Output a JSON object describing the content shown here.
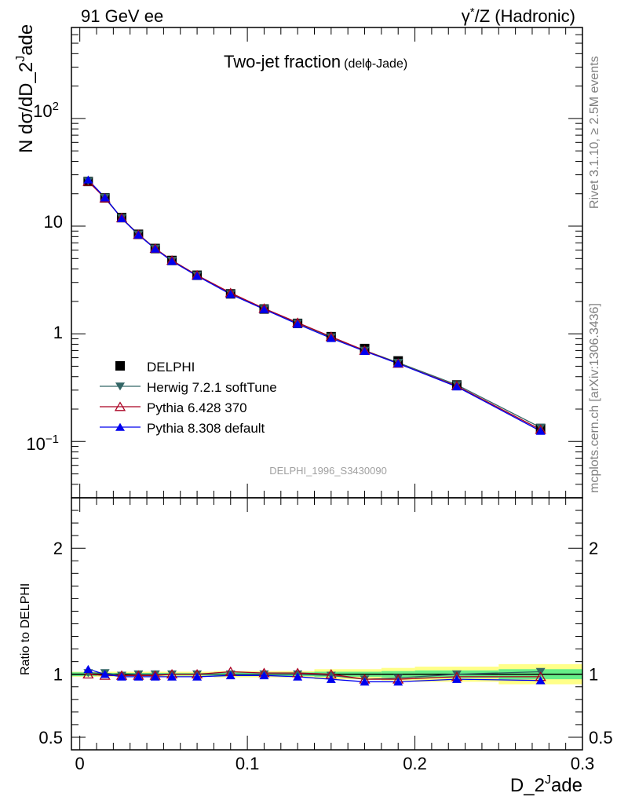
{
  "header": {
    "left": "91 GeV ee",
    "right_prefix": "γ",
    "right_sup": "*",
    "right_rest": "/Z (Hadronic)"
  },
  "side_text": {
    "rivet": "Rivet 3.1.10, ≥ 2.5M events",
    "mcplots": "mcplots.cern.ch [arXiv:1306.3436]"
  },
  "watermark": "DELPHI_1996_S3430090",
  "chart_data": {
    "type": "line",
    "title": "Two-jet fraction",
    "title_suffix": "(delϕ-Jade)",
    "xlabel": "D_2^Jade",
    "xlabel_parts": {
      "base": "D_2",
      "sup": "J",
      "rest": "ade"
    },
    "ylabel_top": "N dσ/dD_2^Jade",
    "ylabel_top_parts": {
      "base": "N dσ/dD_2",
      "sup": "J",
      "rest": "ade"
    },
    "ylabel_ratio": "Ratio to DELPHI",
    "xlim": [
      -0.005,
      0.3
    ],
    "ylim_top": [
      0.03,
      700
    ],
    "ylim_ratio": [
      0.4,
      2.4
    ],
    "yscale_top": "log",
    "x_ticks": [
      "0",
      "0.1",
      "0.2",
      "0.3"
    ],
    "y_ticks_top": [
      "10^-1",
      "1",
      "10",
      "10^2"
    ],
    "y_ticks_ratio": [
      "0.5",
      "1",
      "2"
    ],
    "legend_position": "lower-left",
    "x": [
      0.005,
      0.015,
      0.025,
      0.035,
      0.045,
      0.055,
      0.07,
      0.09,
      0.11,
      0.13,
      0.15,
      0.17,
      0.19,
      0.225,
      0.275
    ],
    "series": [
      {
        "name": "DELPHI",
        "color": "#000000",
        "marker": "square",
        "values": [
          26.0,
          18.3,
          12.0,
          8.4,
          6.2,
          4.8,
          3.5,
          2.35,
          1.7,
          1.25,
          0.94,
          0.73,
          0.56,
          0.335,
          0.132
        ],
        "ratio": [
          1,
          1,
          1,
          1,
          1,
          1,
          1,
          1,
          1,
          1,
          1,
          1,
          1,
          1,
          1
        ]
      },
      {
        "name": "Herwig 7.2.1 softTune",
        "color": "#336666",
        "marker": "triangle-down",
        "values": [
          26.3,
          18.5,
          11.9,
          8.4,
          6.2,
          4.8,
          3.5,
          2.35,
          1.71,
          1.26,
          0.93,
          0.7,
          0.54,
          0.336,
          0.135
        ],
        "ratio": [
          1.01,
          1.01,
          0.99,
          1.0,
          1.0,
          1.0,
          1.0,
          1.0,
          1.0,
          1.0,
          0.99,
          0.96,
          0.97,
          1.0,
          1.02
        ]
      },
      {
        "name": "Pythia 6.428 370",
        "color": "#aa0022",
        "marker": "triangle-up-open",
        "values": [
          26.0,
          18.2,
          11.9,
          8.35,
          6.2,
          4.8,
          3.5,
          2.4,
          1.72,
          1.27,
          0.94,
          0.7,
          0.53,
          0.328,
          0.129
        ],
        "ratio": [
          1.0,
          0.99,
          0.99,
          0.99,
          0.99,
          1.0,
          1.0,
          1.02,
          1.01,
          1.01,
          1.0,
          0.96,
          0.96,
          0.98,
          0.98
        ]
      },
      {
        "name": "Pythia 8.308 default",
        "color": "#0000ee",
        "marker": "triangle-up",
        "values": [
          27.0,
          18.4,
          11.8,
          8.3,
          6.15,
          4.72,
          3.45,
          2.33,
          1.69,
          1.23,
          0.91,
          0.69,
          0.53,
          0.323,
          0.125
        ],
        "ratio": [
          1.04,
          1.0,
          0.98,
          0.98,
          0.98,
          0.98,
          0.98,
          0.99,
          0.99,
          0.98,
          0.96,
          0.94,
          0.94,
          0.96,
          0.95
        ]
      }
    ],
    "uncertainty_bands": [
      {
        "x0": -0.005,
        "x1": 0.01,
        "inner": 0.015,
        "outer": 0.02
      },
      {
        "x0": 0.01,
        "x1": 0.08,
        "inner": 0.01,
        "outer": 0.02
      },
      {
        "x0": 0.08,
        "x1": 0.14,
        "inner": 0.015,
        "outer": 0.025
      },
      {
        "x0": 0.14,
        "x1": 0.18,
        "inner": 0.02,
        "outer": 0.04
      },
      {
        "x0": 0.18,
        "x1": 0.2,
        "inner": 0.025,
        "outer": 0.05
      },
      {
        "x0": 0.2,
        "x1": 0.25,
        "inner": 0.03,
        "outer": 0.06
      },
      {
        "x0": 0.25,
        "x1": 0.3,
        "inner": 0.04,
        "outer": 0.08
      }
    ],
    "band_colors": {
      "inner": "#66ee88",
      "outer": "#ffff88"
    }
  }
}
